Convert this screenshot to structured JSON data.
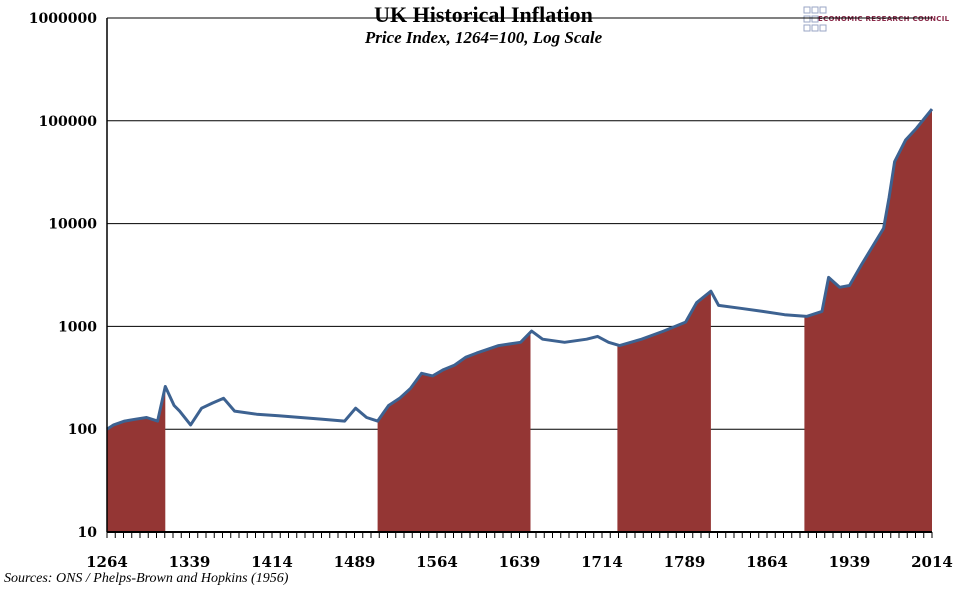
{
  "chart_data": {
    "type": "area",
    "title": "UK Historical Inflation",
    "subtitle": "Price Index, 1264=100, Log Scale",
    "source": "Sources: ONS / Phelps-Brown and Hopkins (1956)",
    "logo_text": "ECONOMIC RESEARCH COUNCIL",
    "y_scale": "log",
    "ylim": [
      10,
      1000000
    ],
    "xlim": [
      1264,
      2014
    ],
    "y_ticks": [
      "10",
      "100",
      "1000",
      "10000",
      "100000",
      "1000000"
    ],
    "x_ticks": [
      "1264",
      "1339",
      "1414",
      "1489",
      "1564",
      "1639",
      "1714",
      "1789",
      "1864",
      "1939",
      "2014"
    ],
    "grid": "horizontal",
    "line_color": "#3d6291",
    "fill_color": "#943634",
    "shaded_periods": [
      [
        1264,
        1317
      ],
      [
        1510,
        1649
      ],
      [
        1728,
        1813
      ],
      [
        1898,
        2014
      ]
    ],
    "x": [
      1264,
      1270,
      1280,
      1290,
      1300,
      1310,
      1317,
      1325,
      1330,
      1340,
      1350,
      1360,
      1370,
      1380,
      1400,
      1420,
      1440,
      1460,
      1480,
      1490,
      1500,
      1510,
      1520,
      1530,
      1540,
      1550,
      1560,
      1570,
      1580,
      1590,
      1600,
      1620,
      1640,
      1650,
      1660,
      1680,
      1700,
      1710,
      1720,
      1730,
      1750,
      1770,
      1790,
      1800,
      1813,
      1820,
      1840,
      1860,
      1880,
      1900,
      1914,
      1920,
      1930,
      1939,
      1950,
      1960,
      1970,
      1975,
      1980,
      1990,
      2000,
      2014
    ],
    "values": [
      100,
      110,
      120,
      125,
      130,
      120,
      260,
      170,
      150,
      110,
      160,
      180,
      200,
      150,
      140,
      135,
      130,
      125,
      120,
      160,
      130,
      120,
      170,
      200,
      250,
      350,
      330,
      380,
      420,
      500,
      550,
      650,
      700,
      900,
      750,
      700,
      750,
      800,
      700,
      650,
      750,
      900,
      1100,
      1700,
      2200,
      1600,
      1500,
      1400,
      1300,
      1250,
      1400,
      3000,
      2400,
      2500,
      4000,
      6000,
      9000,
      18000,
      40000,
      65000,
      85000,
      130000
    ]
  }
}
